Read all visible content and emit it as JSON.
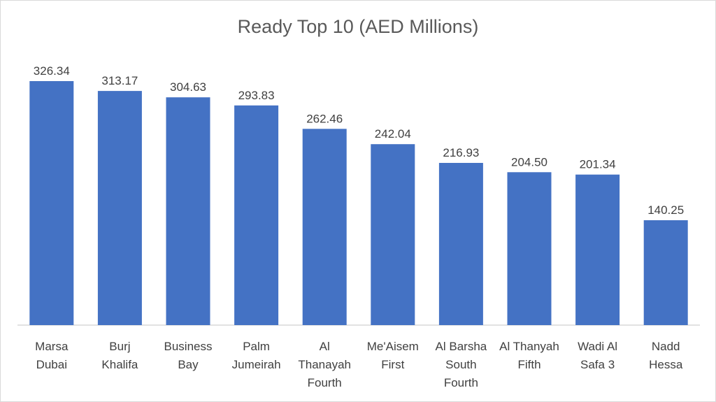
{
  "chart_data": {
    "type": "bar",
    "title": "Ready Top 10 (AED Millions)",
    "xlabel": "",
    "ylabel": "",
    "ylim": [
      0,
      350
    ],
    "grid": false,
    "legend": "none",
    "categories": [
      [
        "Marsa",
        "Dubai"
      ],
      [
        "Burj",
        "Khalifa"
      ],
      [
        "Business",
        "Bay"
      ],
      [
        "Palm",
        "Jumeirah"
      ],
      [
        "Al",
        "Thanayah",
        "Fourth"
      ],
      [
        "Me'Aisem",
        "First"
      ],
      [
        "Al Barsha",
        "South",
        "Fourth"
      ],
      [
        "Al Thanyah",
        "Fifth"
      ],
      [
        "Wadi Al",
        "Safa 3"
      ],
      [
        "Nadd",
        "Hessa"
      ]
    ],
    "values": [
      326.34,
      313.17,
      304.63,
      293.83,
      262.46,
      242.04,
      216.93,
      204.5,
      201.34,
      140.25
    ],
    "value_labels": [
      "326.34",
      "313.17",
      "304.63",
      "293.83",
      "262.46",
      "242.04",
      "216.93",
      "204.50",
      "201.34",
      "140.25"
    ],
    "colors": {
      "bar": "#4472c4",
      "axis": "#d9d9d9"
    }
  }
}
